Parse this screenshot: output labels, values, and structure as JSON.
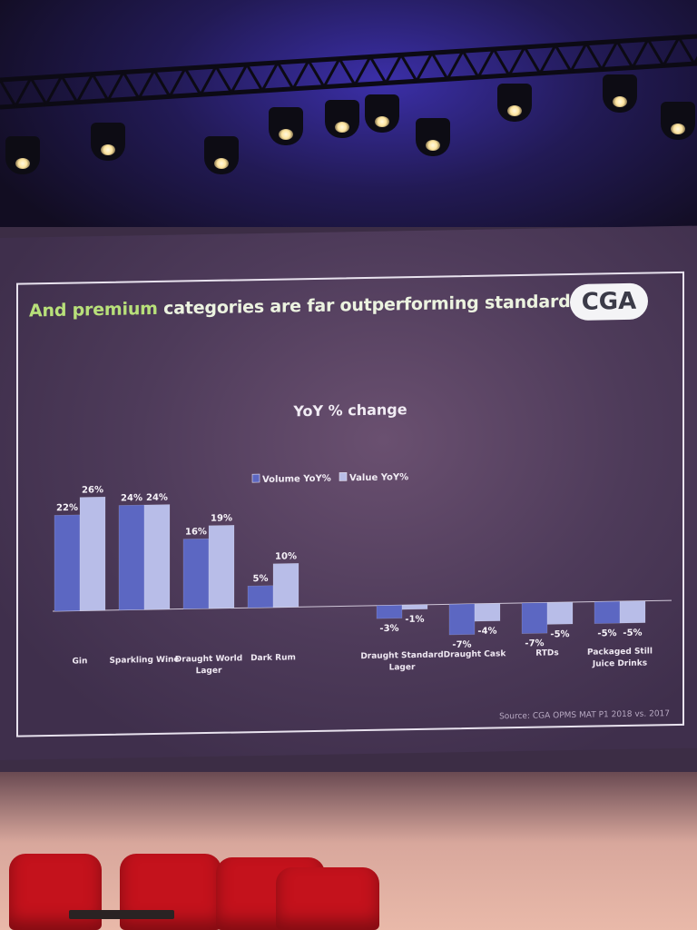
{
  "slide": {
    "title_prefix": "And premium",
    "title_rest": " categories are far outperforming standard",
    "logo_text": "CGA",
    "source": "Source: CGA OPMS MAT P1 2018 vs. 2017"
  },
  "chart_data": {
    "type": "bar",
    "title": "YoY % change",
    "categories": [
      "Gin",
      "Sparkling Wine",
      "Draught World Lager",
      "Dark Rum",
      "Draught Standard Lager",
      "Draught Cask",
      "RTDs",
      "Packaged Still Juice Drinks"
    ],
    "category_lines": [
      [
        "Gin"
      ],
      [
        "Sparkling Wine"
      ],
      [
        "Draught World",
        "Lager"
      ],
      [
        "Dark Rum"
      ],
      [
        "Draught Standard",
        "Lager"
      ],
      [
        "Draught Cask"
      ],
      [
        "RTDs"
      ],
      [
        "Packaged Still",
        "Juice Drinks"
      ]
    ],
    "series": [
      {
        "name": "Volume YoY%",
        "values": [
          22,
          24,
          16,
          5,
          -3,
          -7,
          -7,
          -5
        ],
        "labels": [
          "22%",
          "24%",
          "16%",
          "5%",
          "-3%",
          "-7%",
          "-7%",
          "-5%"
        ],
        "color": "#5c67c2"
      },
      {
        "name": "Value YoY%",
        "values": [
          26,
          24,
          19,
          10,
          -1,
          -4,
          -5,
          -5
        ],
        "labels": [
          "26%",
          "24%",
          "19%",
          "10%",
          "-1%",
          "-4%",
          "-5%",
          "-5%"
        ],
        "color": "#b8bde8"
      }
    ],
    "legend_position": "top-center",
    "grid": false
  }
}
